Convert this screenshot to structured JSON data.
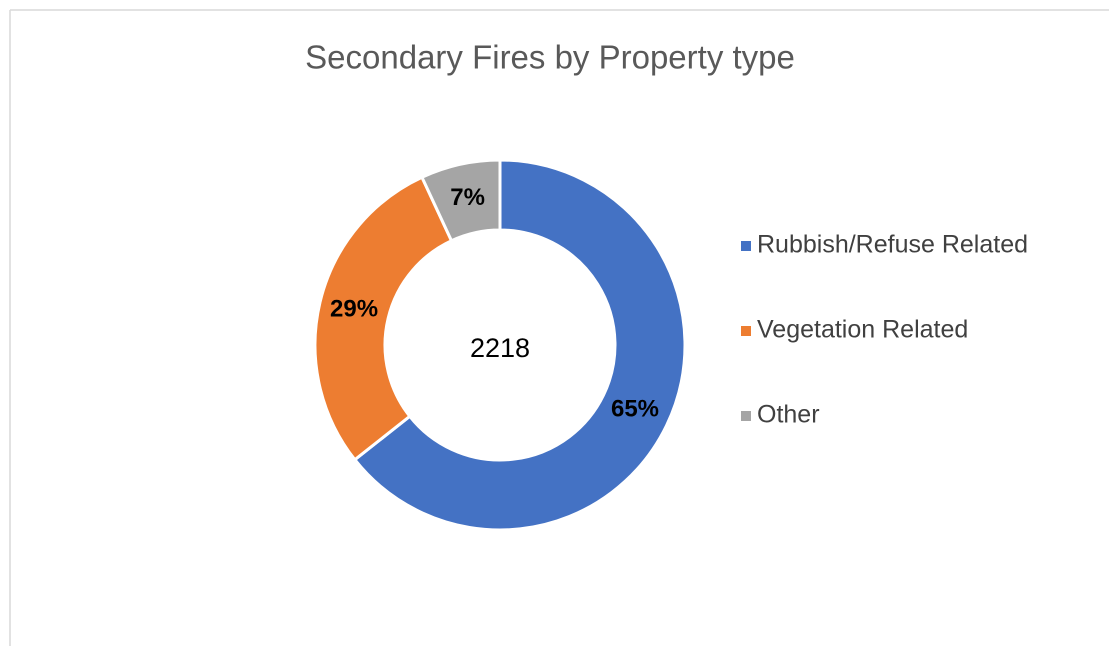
{
  "chart_data": {
    "type": "donut",
    "title": "Secondary Fires by Property type",
    "categories": [
      "Rubbish/Refuse Related",
      "Vegetation Related",
      "Other"
    ],
    "values": [
      65,
      29,
      7
    ],
    "value_labels": [
      "65%",
      "29%",
      "7%"
    ],
    "colors": [
      "#4472c4",
      "#ed7d31",
      "#a5a5a5"
    ],
    "center_text": 2218,
    "legend": "right"
  }
}
